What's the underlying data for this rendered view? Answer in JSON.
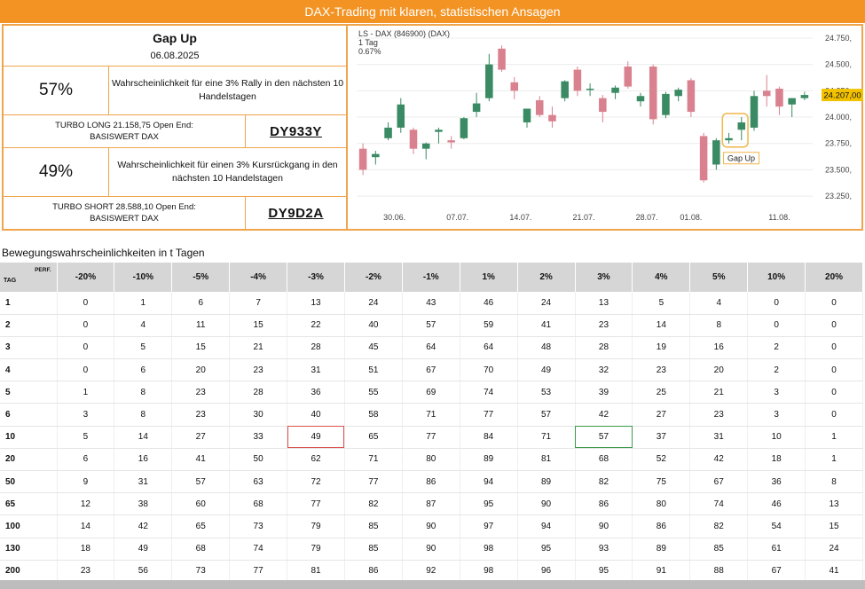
{
  "banner": {
    "title": "DAX-Trading mit klaren, statistischen Ansagen"
  },
  "gap": {
    "title": "Gap Up",
    "date": "06.08.2025"
  },
  "long": {
    "pct": "57%",
    "desc": "Wahrscheinlichkeit für eine 3% Rally in den nächsten 10 Handelstagen",
    "turbo": "TURBO LONG 21.158,75 Open End: BASISWERT DAX",
    "code": "DY933Y"
  },
  "short": {
    "pct": "49%",
    "desc": "Wahrscheinlichkeit für einen 3% Kursrückgang in den nächsten 10 Handelstagen",
    "turbo": "TURBO SHORT 28.588,10 Open End: BASISWERT DAX",
    "code": "DY9D2A"
  },
  "chart_data": {
    "type": "candlestick",
    "header": [
      "LS - DAX (846900) (DAX)",
      "1 Tag",
      "0.67%"
    ],
    "annotation": "Gap Up",
    "last_value_label": "24.207,00",
    "ylim": [
      23150,
      24800
    ],
    "yticks": [
      24750,
      24500,
      24250,
      24000,
      23750,
      23500,
      23250
    ],
    "ytick_labels": [
      "24.750,",
      "24.500,",
      "24.250,",
      "24.000,",
      "23.750,",
      "23.500,",
      "23.250,"
    ],
    "xtick_labels": [
      "30.06.",
      "07.07.",
      "14.07.",
      "21.07.",
      "28.07.",
      "01.08.",
      "11.08."
    ],
    "xtick_index": [
      2.5,
      7.5,
      12.5,
      17.5,
      22.5,
      26,
      33
    ],
    "colors": {
      "up": "#3a8a63",
      "down": "#d9818e",
      "highlight": "#f0b64a"
    },
    "candles": [
      {
        "o": 23700,
        "h": 23750,
        "l": 23450,
        "c": 23500
      },
      {
        "o": 23620,
        "h": 23680,
        "l": 23550,
        "c": 23650
      },
      {
        "o": 23800,
        "h": 23950,
        "l": 23780,
        "c": 23900
      },
      {
        "o": 23900,
        "h": 24180,
        "l": 23850,
        "c": 24120
      },
      {
        "o": 23880,
        "h": 23900,
        "l": 23650,
        "c": 23700
      },
      {
        "o": 23700,
        "h": 23760,
        "l": 23600,
        "c": 23750
      },
      {
        "o": 23860,
        "h": 23900,
        "l": 23750,
        "c": 23880
      },
      {
        "o": 23780,
        "h": 23820,
        "l": 23700,
        "c": 23760
      },
      {
        "o": 23800,
        "h": 24000,
        "l": 23790,
        "c": 23990
      },
      {
        "o": 24050,
        "h": 24230,
        "l": 24000,
        "c": 24130
      },
      {
        "o": 24180,
        "h": 24600,
        "l": 24150,
        "c": 24500
      },
      {
        "o": 24650,
        "h": 24680,
        "l": 24430,
        "c": 24450
      },
      {
        "o": 24330,
        "h": 24380,
        "l": 24170,
        "c": 24250
      },
      {
        "o": 23950,
        "h": 24080,
        "l": 23900,
        "c": 24080
      },
      {
        "o": 24160,
        "h": 24200,
        "l": 24000,
        "c": 24020
      },
      {
        "o": 24020,
        "h": 24100,
        "l": 23900,
        "c": 23960
      },
      {
        "o": 24180,
        "h": 24350,
        "l": 24150,
        "c": 24340
      },
      {
        "o": 24450,
        "h": 24480,
        "l": 24200,
        "c": 24250
      },
      {
        "o": 24270,
        "h": 24320,
        "l": 24200,
        "c": 24270
      },
      {
        "o": 24180,
        "h": 24210,
        "l": 23950,
        "c": 24050
      },
      {
        "o": 24230,
        "h": 24300,
        "l": 24170,
        "c": 24280
      },
      {
        "o": 24480,
        "h": 24530,
        "l": 24270,
        "c": 24290
      },
      {
        "o": 24150,
        "h": 24230,
        "l": 24100,
        "c": 24200
      },
      {
        "o": 24480,
        "h": 24500,
        "l": 23930,
        "c": 23980
      },
      {
        "o": 24020,
        "h": 24240,
        "l": 23990,
        "c": 24220
      },
      {
        "o": 24200,
        "h": 24280,
        "l": 24150,
        "c": 24260
      },
      {
        "o": 24350,
        "h": 24370,
        "l": 24000,
        "c": 24050
      },
      {
        "o": 23820,
        "h": 23850,
        "l": 23380,
        "c": 23400
      },
      {
        "o": 23550,
        "h": 23800,
        "l": 23500,
        "c": 23780
      },
      {
        "o": 23780,
        "h": 23850,
        "l": 23750,
        "c": 23800
      },
      {
        "o": 23880,
        "h": 24000,
        "l": 23780,
        "c": 23950
      },
      {
        "o": 23900,
        "h": 24250,
        "l": 23870,
        "c": 24200
      },
      {
        "o": 24250,
        "h": 24400,
        "l": 24100,
        "c": 24200
      },
      {
        "o": 24270,
        "h": 24290,
        "l": 24020,
        "c": 24100
      },
      {
        "o": 24120,
        "h": 24180,
        "l": 24000,
        "c": 24180
      },
      {
        "o": 24180,
        "h": 24240,
        "l": 24160,
        "c": 24210
      }
    ],
    "highlight_index": [
      29,
      30
    ]
  },
  "table": {
    "title": "Bewegungswahrscheinlichkeiten in t Tagen",
    "perf_label": "PERF.",
    "tag_label": "TAG",
    "columns": [
      "-20%",
      "-10%",
      "-5%",
      "-4%",
      "-3%",
      "-2%",
      "-1%",
      "1%",
      "2%",
      "3%",
      "4%",
      "5%",
      "10%",
      "20%"
    ],
    "rows": [
      {
        "tag": "1",
        "values": [
          "0",
          "1",
          "6",
          "7",
          "13",
          "24",
          "43",
          "46",
          "24",
          "13",
          "5",
          "4",
          "0",
          "0"
        ]
      },
      {
        "tag": "2",
        "values": [
          "0",
          "4",
          "11",
          "15",
          "22",
          "40",
          "57",
          "59",
          "41",
          "23",
          "14",
          "8",
          "0",
          "0"
        ]
      },
      {
        "tag": "3",
        "values": [
          "0",
          "5",
          "15",
          "21",
          "28",
          "45",
          "64",
          "64",
          "48",
          "28",
          "19",
          "16",
          "2",
          "0"
        ]
      },
      {
        "tag": "4",
        "values": [
          "0",
          "6",
          "20",
          "23",
          "31",
          "51",
          "67",
          "70",
          "49",
          "32",
          "23",
          "20",
          "2",
          "0"
        ]
      },
      {
        "tag": "5",
        "values": [
          "1",
          "8",
          "23",
          "28",
          "36",
          "55",
          "69",
          "74",
          "53",
          "39",
          "25",
          "21",
          "3",
          "0"
        ]
      },
      {
        "tag": "6",
        "values": [
          "3",
          "8",
          "23",
          "30",
          "40",
          "58",
          "71",
          "77",
          "57",
          "42",
          "27",
          "23",
          "3",
          "0"
        ]
      },
      {
        "tag": "10",
        "values": [
          "5",
          "14",
          "27",
          "33",
          "49",
          "65",
          "77",
          "84",
          "71",
          "57",
          "37",
          "31",
          "10",
          "1"
        ]
      },
      {
        "tag": "20",
        "values": [
          "6",
          "16",
          "41",
          "50",
          "62",
          "71",
          "80",
          "89",
          "81",
          "68",
          "52",
          "42",
          "18",
          "1"
        ]
      },
      {
        "tag": "50",
        "values": [
          "9",
          "31",
          "57",
          "63",
          "72",
          "77",
          "86",
          "94",
          "89",
          "82",
          "75",
          "67",
          "36",
          "8"
        ]
      },
      {
        "tag": "65",
        "values": [
          "12",
          "38",
          "60",
          "68",
          "77",
          "82",
          "87",
          "95",
          "90",
          "86",
          "80",
          "74",
          "46",
          "13"
        ]
      },
      {
        "tag": "100",
        "values": [
          "14",
          "42",
          "65",
          "73",
          "79",
          "85",
          "90",
          "97",
          "94",
          "90",
          "86",
          "82",
          "54",
          "15"
        ]
      },
      {
        "tag": "130",
        "values": [
          "18",
          "49",
          "68",
          "74",
          "79",
          "85",
          "90",
          "98",
          "95",
          "93",
          "89",
          "85",
          "61",
          "24"
        ]
      },
      {
        "tag": "200",
        "values": [
          "23",
          "56",
          "73",
          "77",
          "81",
          "86",
          "92",
          "98",
          "96",
          "95",
          "91",
          "88",
          "67",
          "41"
        ]
      }
    ],
    "highlight": {
      "row": 6,
      "red_col": 4,
      "green_col": 9
    }
  }
}
